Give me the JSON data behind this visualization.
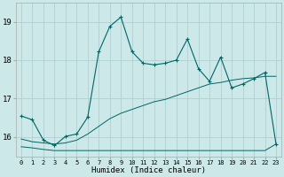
{
  "title": "",
  "xlabel": "Humidex (Indice chaleur)",
  "ylabel": "",
  "bg_color": "#cce8e8",
  "line_color": "#006666",
  "grid_color": "#aacccc",
  "xlim": [
    -0.5,
    23.5
  ],
  "ylim": [
    15.5,
    19.5
  ],
  "yticks": [
    16,
    17,
    18,
    19
  ],
  "xticks": [
    0,
    1,
    2,
    3,
    4,
    5,
    6,
    7,
    8,
    9,
    10,
    11,
    12,
    13,
    14,
    15,
    16,
    17,
    18,
    19,
    20,
    21,
    22,
    23
  ],
  "line1_x": [
    0,
    1,
    2,
    3,
    4,
    5,
    6,
    7,
    8,
    9,
    10,
    11,
    12,
    13,
    14,
    15,
    16,
    17,
    18,
    19,
    20,
    21,
    22,
    23
  ],
  "line1_y": [
    16.55,
    16.45,
    15.92,
    15.78,
    16.02,
    16.08,
    16.52,
    18.22,
    18.88,
    19.12,
    18.22,
    17.92,
    17.88,
    17.92,
    18.0,
    18.55,
    17.78,
    17.45,
    18.08,
    17.28,
    17.38,
    17.52,
    17.68,
    15.82
  ],
  "line2_x": [
    0,
    1,
    2,
    3,
    4,
    5,
    6,
    7,
    8,
    9,
    10,
    11,
    12,
    13,
    14,
    15,
    16,
    17,
    18,
    19,
    20,
    21,
    22,
    23
  ],
  "line2_y": [
    15.95,
    15.88,
    15.85,
    15.82,
    15.85,
    15.92,
    16.08,
    16.28,
    16.48,
    16.62,
    16.72,
    16.82,
    16.92,
    16.98,
    17.08,
    17.18,
    17.28,
    17.38,
    17.42,
    17.48,
    17.52,
    17.54,
    17.58,
    17.58
  ],
  "line3_x": [
    0,
    1,
    2,
    3,
    9,
    10,
    15,
    22,
    23
  ],
  "line3_y": [
    15.75,
    15.72,
    15.68,
    15.65,
    15.65,
    15.65,
    15.65,
    15.65,
    15.82
  ],
  "marker": "+"
}
